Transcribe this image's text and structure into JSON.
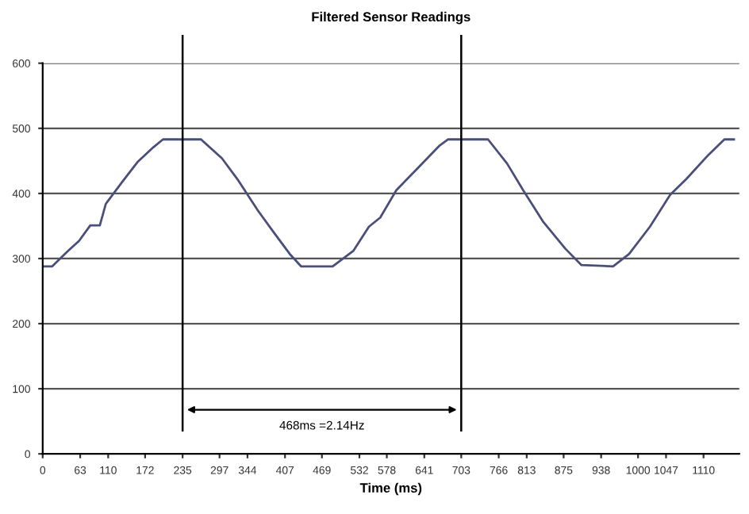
{
  "chart_data": {
    "type": "line",
    "title": "Filtered Sensor Readings",
    "xlabel": "Time (ms)",
    "x": [
      0,
      16,
      43,
      61,
      80,
      96,
      106,
      133,
      160,
      186,
      202,
      266,
      301,
      327,
      362,
      389,
      415,
      434,
      487,
      522,
      548,
      567,
      594,
      628,
      666,
      681,
      748,
      780,
      807,
      841,
      878,
      905,
      958,
      985,
      1020,
      1054,
      1081,
      1118,
      1145,
      1161
    ],
    "series": [
      {
        "color": "#4a4f7a",
        "values": [
          288,
          288,
          312,
          327,
          351,
          351,
          384,
          417,
          449,
          471,
          483,
          483,
          454,
          422,
          373,
          339,
          307,
          288,
          288,
          312,
          349,
          363,
          405,
          437,
          473,
          483,
          483,
          446,
          405,
          356,
          315,
          290,
          288,
          307,
          349,
          398,
          422,
          459,
          483,
          483
        ]
      }
    ],
    "xlim": [
      0,
      1170
    ],
    "xticks": [
      0,
      63,
      110,
      172,
      235,
      297,
      344,
      407,
      469,
      532,
      578,
      641,
      703,
      766,
      813,
      875,
      938,
      1000,
      1047,
      1110
    ],
    "ylim": [
      0,
      600
    ],
    "yticks": [
      0,
      100,
      200,
      300,
      400,
      500,
      600
    ],
    "grid": "y",
    "marker": "none",
    "line_style": "solid",
    "ref_lines": [
      {
        "axis": "x",
        "value": 235,
        "color": "#000000"
      },
      {
        "axis": "x",
        "value": 703,
        "color": "#000000"
      }
    ],
    "annotations": [
      "468ms =2.14Hz"
    ]
  }
}
